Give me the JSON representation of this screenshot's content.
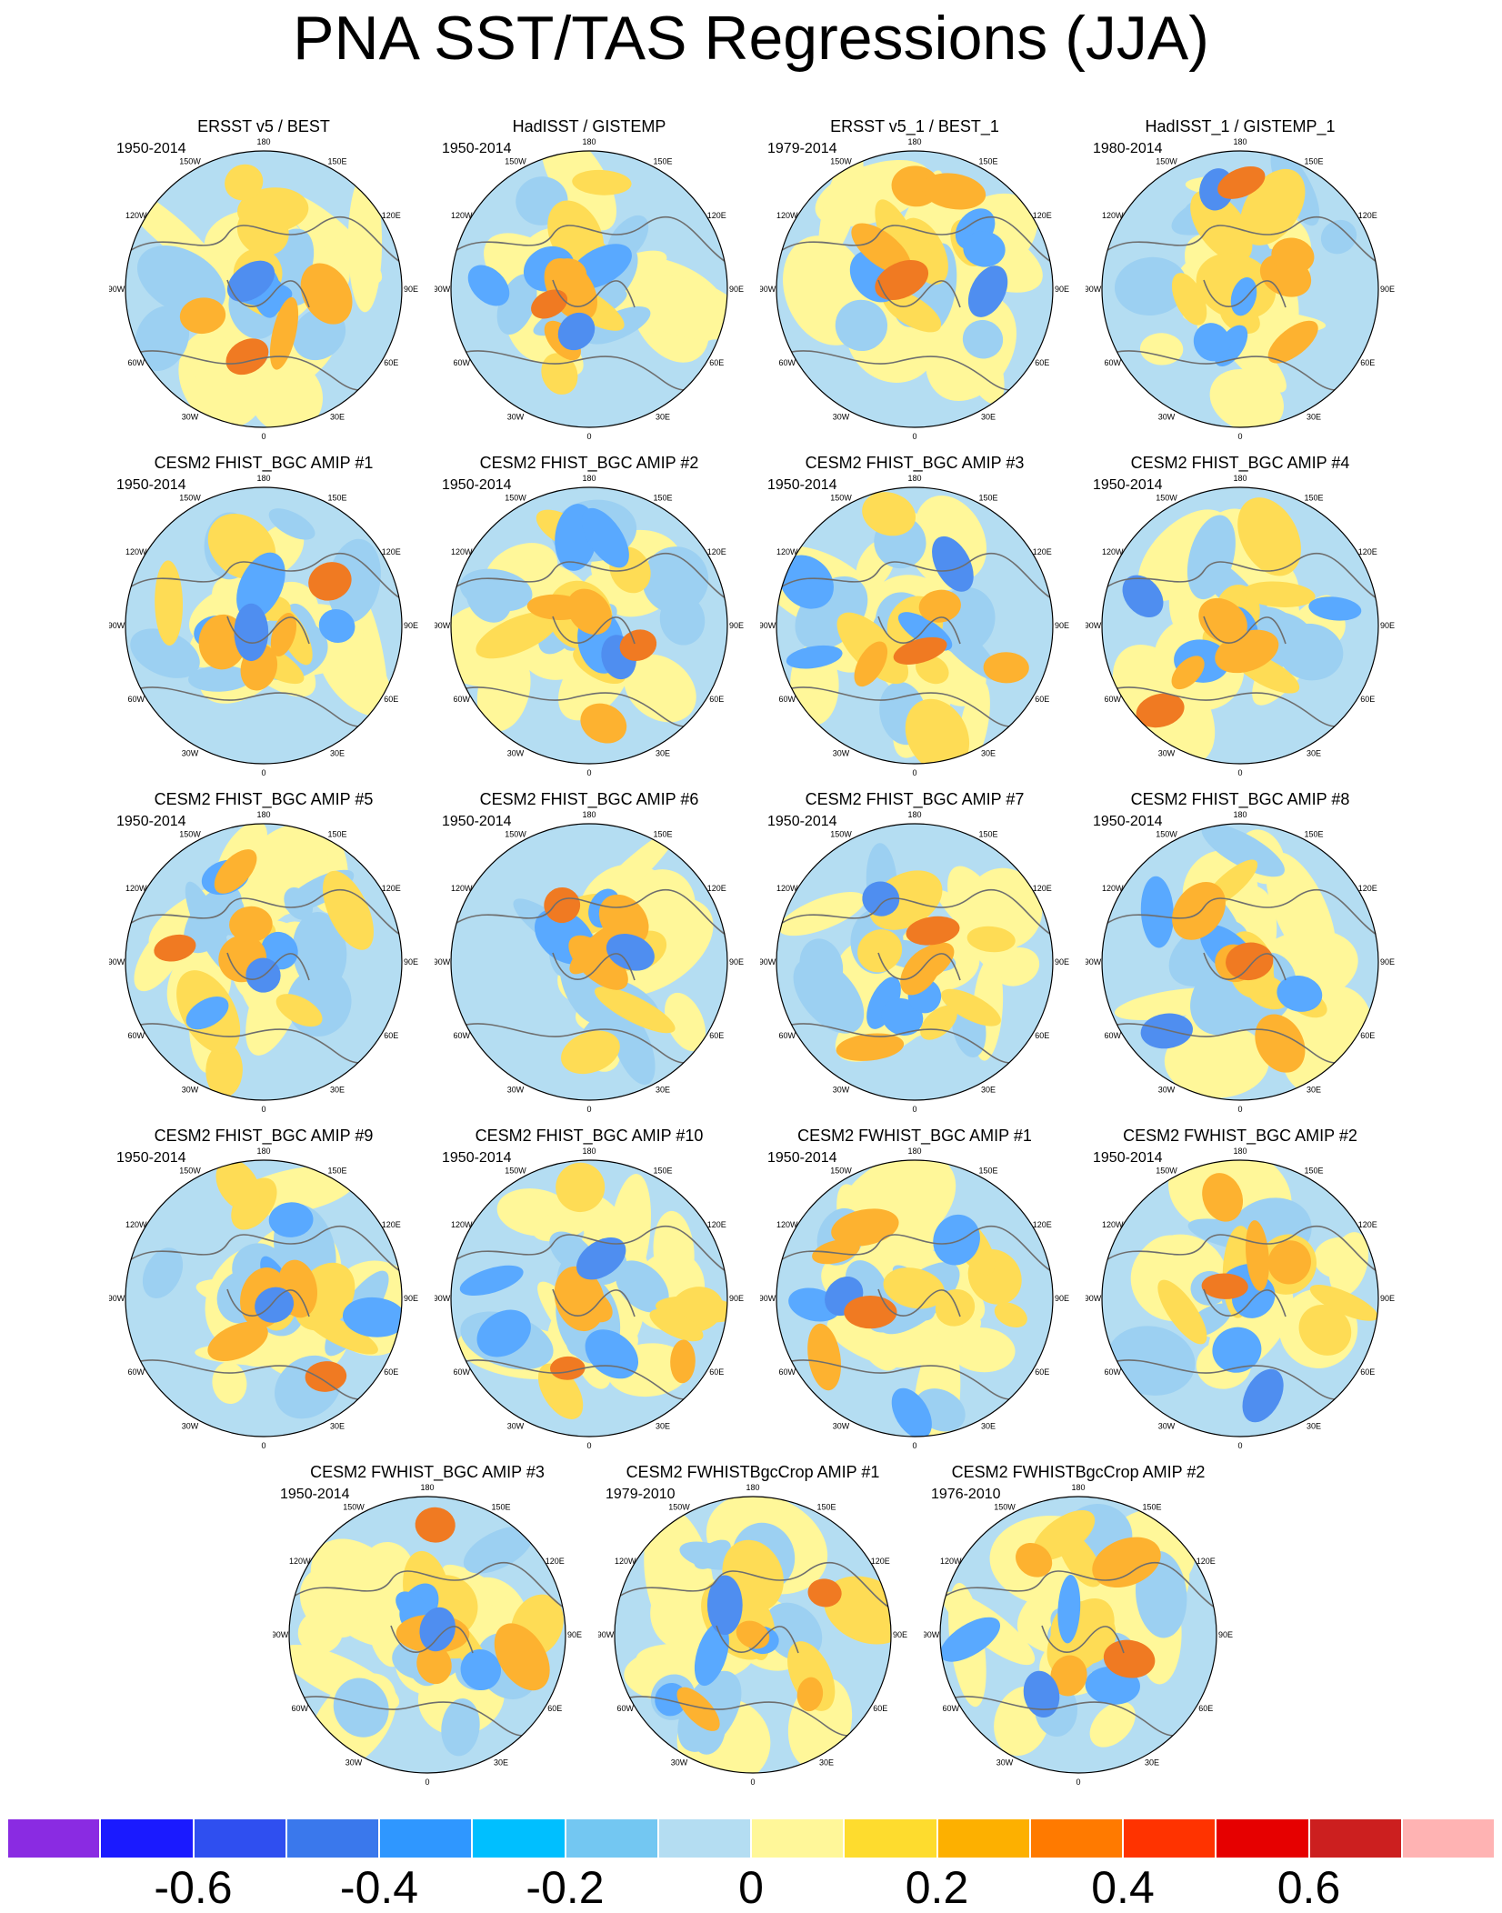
{
  "title": "PNA SST/TAS Regressions (JJA)",
  "lon_labels": [
    "180",
    "150E",
    "120E",
    "90E",
    "60E",
    "30E",
    "0",
    "30W",
    "60W",
    "90W",
    "120W",
    "150W"
  ],
  "colors": {
    "neg3": "#4f8ef0",
    "neg2": "#59a9ff",
    "neg1": "#9cd0f2",
    "light_blue": "#b4ddf2",
    "light_yellow": "#fff799",
    "pos1": "#fedc55",
    "pos2": "#fdb230",
    "pos3": "#f07a22",
    "coast": "#6e6e6e"
  },
  "panels": [
    {
      "title": "ERSST v5 / BEST",
      "period": "1950-2014"
    },
    {
      "title": "HadISST / GISTEMP",
      "period": "1950-2014"
    },
    {
      "title": "ERSST v5_1 / BEST_1",
      "period": "1979-2014"
    },
    {
      "title": "HadISST_1 / GISTEMP_1",
      "period": "1980-2014"
    },
    {
      "title": "CESM2 FHIST_BGC AMIP #1",
      "period": "1950-2014"
    },
    {
      "title": "CESM2 FHIST_BGC AMIP #2",
      "period": "1950-2014"
    },
    {
      "title": "CESM2 FHIST_BGC AMIP #3",
      "period": "1950-2014"
    },
    {
      "title": "CESM2 FHIST_BGC AMIP #4",
      "period": "1950-2014"
    },
    {
      "title": "CESM2 FHIST_BGC AMIP #5",
      "period": "1950-2014"
    },
    {
      "title": "CESM2 FHIST_BGC AMIP #6",
      "period": "1950-2014"
    },
    {
      "title": "CESM2 FHIST_BGC AMIP #7",
      "period": "1950-2014"
    },
    {
      "title": "CESM2 FHIST_BGC AMIP #8",
      "period": "1950-2014"
    },
    {
      "title": "CESM2 FHIST_BGC AMIP #9",
      "period": "1950-2014"
    },
    {
      "title": "CESM2 FHIST_BGC AMIP #10",
      "period": "1950-2014"
    },
    {
      "title": "CESM2 FWHIST_BGC AMIP #1",
      "period": "1950-2014"
    },
    {
      "title": "CESM2 FWHIST_BGC AMIP #2",
      "period": "1950-2014"
    },
    {
      "title": "CESM2 FWHIST_BGC AMIP #3",
      "period": "1950-2014"
    },
    {
      "title": "CESM2 FWHISTBgcCrop AMIP #1",
      "period": "1979-2010"
    },
    {
      "title": "CESM2 FWHISTBgcCrop AMIP #2",
      "period": "1976-2010"
    }
  ],
  "colorbar": {
    "colors": [
      "#8a2be2",
      "#1a1aff",
      "#2f4ff0",
      "#3a78ec",
      "#2f97ff",
      "#00bfff",
      "#73c7f2",
      "#b4ddf2",
      "#fff799",
      "#fedc2e",
      "#fdb000",
      "#ff7a00",
      "#ff3300",
      "#e60000",
      "#cc1f1f",
      "#ffb3b3"
    ],
    "labels": [
      "-0.6",
      "-0.4",
      "-0.2",
      "0",
      "0.2",
      "0.4",
      "0.6"
    ]
  }
}
